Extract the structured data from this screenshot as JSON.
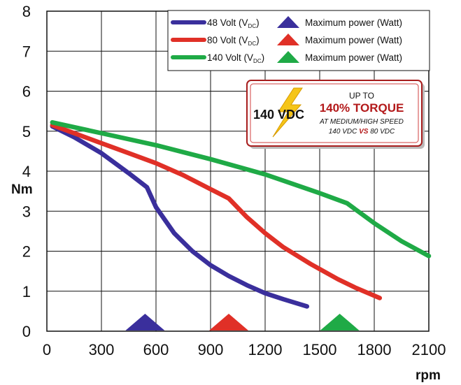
{
  "chart_data": {
    "type": "line",
    "xlabel": "rpm",
    "ylabel": "Nm",
    "xlim": [
      0,
      2100
    ],
    "ylim": [
      0,
      8
    ],
    "x_ticks": [
      0,
      300,
      600,
      900,
      1200,
      1500,
      1800,
      2100
    ],
    "y_ticks": [
      0,
      1,
      2,
      3,
      4,
      5,
      6,
      7,
      8
    ],
    "grid": true,
    "legend_position": "top-right",
    "series": [
      {
        "name": "48 Volt (V_DC)",
        "voltage": "48",
        "color": "#3a2f9c",
        "x": [
          30,
          150,
          300,
          450,
          550,
          600,
          700,
          800,
          900,
          1000,
          1100,
          1200,
          1300,
          1430
        ],
        "y": [
          5.12,
          4.85,
          4.45,
          3.95,
          3.6,
          3.1,
          2.45,
          2.0,
          1.65,
          1.38,
          1.15,
          0.95,
          0.8,
          0.62
        ],
        "max_power_rpm": 540
      },
      {
        "name": "80 Volt (V_DC)",
        "voltage": "80",
        "color": "#e03027",
        "x": [
          30,
          150,
          300,
          450,
          600,
          750,
          900,
          1000,
          1100,
          1200,
          1300,
          1450,
          1600,
          1700,
          1830
        ],
        "y": [
          5.15,
          4.95,
          4.7,
          4.45,
          4.2,
          3.9,
          3.55,
          3.32,
          2.85,
          2.45,
          2.1,
          1.68,
          1.3,
          1.08,
          0.83
        ],
        "max_power_rpm": 1000
      },
      {
        "name": "140 Volt (V_DC)",
        "voltage": "140",
        "color": "#1faa46",
        "x": [
          30,
          300,
          600,
          900,
          1200,
          1500,
          1650,
          1800,
          1950,
          2100
        ],
        "y": [
          5.22,
          4.95,
          4.65,
          4.3,
          3.92,
          3.45,
          3.2,
          2.7,
          2.25,
          1.88
        ],
        "max_power_rpm": 1610
      }
    ],
    "legend_marker_label": "Maximum power (Watt)",
    "legend_unit_main": "Volt (V",
    "legend_unit_sub": "DC",
    "legend_unit_close": ")",
    "callout": {
      "left_text": "140 VDC",
      "line1": "UP TO",
      "line2": "140% TORQUE",
      "line3": "AT MEDIUM/HIGH SPEED",
      "line4_a": "140 VDC ",
      "line4_b": "VS",
      "line4_c": " 80 VDC",
      "accent_color": "#b3191a",
      "bolt_color": "#f5c518"
    }
  }
}
